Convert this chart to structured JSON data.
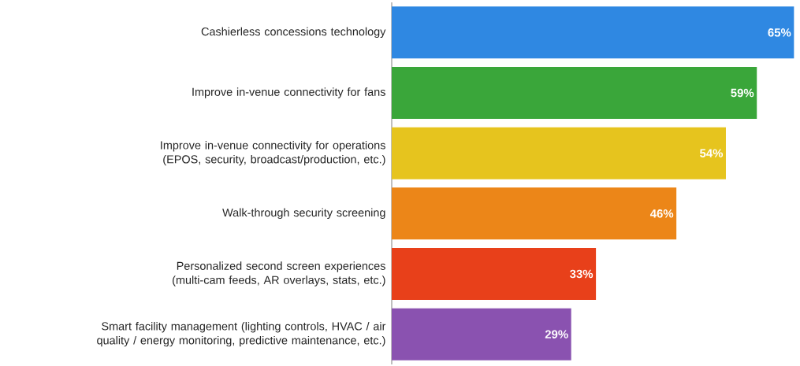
{
  "chart_data": {
    "type": "bar",
    "orientation": "horizontal",
    "categories": [
      "Cashierless concessions technology",
      "Improve in-venue connectivity for fans",
      "Improve in-venue connectivity for operations (EPOS, security, broadcast/production, etc.)",
      "Walk-through security screening",
      "Personalized second screen experiences (multi-cam feeds, AR overlays, stats, etc.)",
      "Smart facility management (lighting controls, HVAC / air quality / energy monitoring, predictive maintenance, etc.)"
    ],
    "values": [
      65,
      59,
      54,
      46,
      33,
      29
    ],
    "value_labels": [
      "65%",
      "59%",
      "54%",
      "46%",
      "33%",
      "29%"
    ],
    "colors": [
      "#2f88e2",
      "#3aa63a",
      "#e6c41e",
      "#ec8618",
      "#e8401a",
      "#8a52b0"
    ],
    "tick_labels": "y"
  }
}
